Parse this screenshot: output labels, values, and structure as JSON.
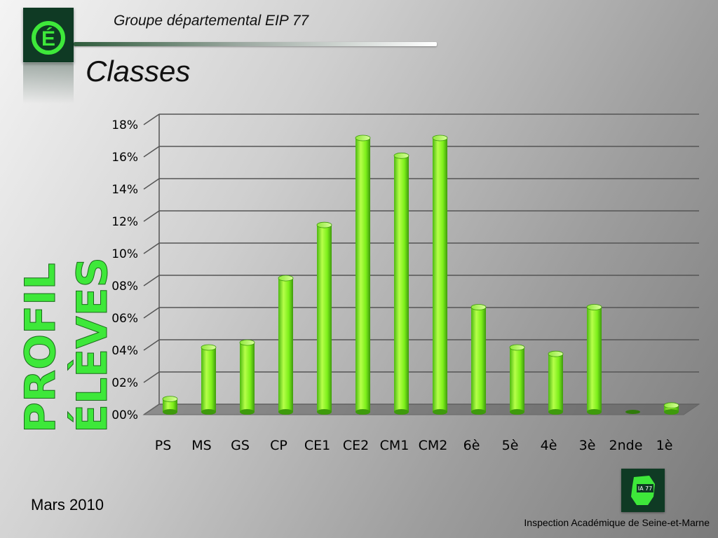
{
  "header": {
    "group": "Groupe départemental EIP 77",
    "title": "Classes"
  },
  "side_label": {
    "line1": "PROFIL",
    "line2": "ÉLÈVES"
  },
  "footer": {
    "date": "Mars 2010",
    "organization": "Inspection Académique de Seine-et-Marne"
  },
  "logos": {
    "top_left_letter": "É",
    "bottom_right_text": "IA 77"
  },
  "colors": {
    "bar": "#7df01a",
    "accent_green": "#3ee83a",
    "logo_bg": "#0f3a24"
  },
  "chart_data": {
    "type": "bar",
    "categories": [
      "PS",
      "MS",
      "GS",
      "CP",
      "CE1",
      "CE2",
      "CM1",
      "CM2",
      "6è",
      "5è",
      "4è",
      "3è",
      "2nde",
      "1è"
    ],
    "values": [
      0.8,
      4.0,
      4.3,
      8.3,
      11.6,
      17.0,
      15.9,
      17.0,
      6.5,
      4.0,
      3.6,
      6.5,
      0.0,
      0.4
    ],
    "ylim": [
      0,
      18
    ],
    "yticks": [
      "00%",
      "02%",
      "04%",
      "06%",
      "08%",
      "10%",
      "12%",
      "14%",
      "16%",
      "18%"
    ],
    "grid": true
  }
}
